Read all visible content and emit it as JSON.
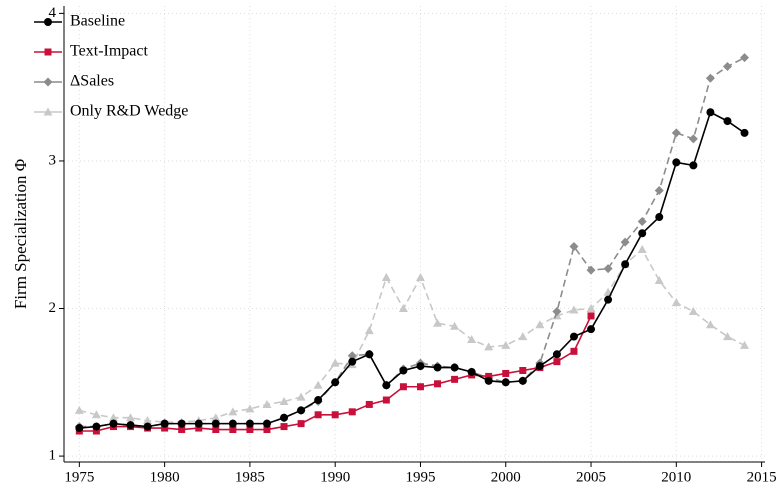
{
  "chart_data": {
    "type": "line",
    "ylabel": "Firm Specialization Φ",
    "x": [
      1975,
      1976,
      1977,
      1978,
      1979,
      1980,
      1981,
      1982,
      1983,
      1984,
      1985,
      1986,
      1987,
      1988,
      1989,
      1990,
      1991,
      1992,
      1993,
      1994,
      1995,
      1996,
      1997,
      1998,
      1999,
      2000,
      2001,
      2002,
      2003,
      2004,
      2005,
      2006,
      2007,
      2008,
      2009,
      2010,
      2011,
      2012,
      2013,
      2014
    ],
    "series": [
      {
        "name": "Baseline",
        "color": "#000000",
        "marker": "circle",
        "dashed": false,
        "values": [
          1.19,
          1.2,
          1.22,
          1.21,
          1.2,
          1.22,
          1.22,
          1.22,
          1.22,
          1.22,
          1.22,
          1.22,
          1.26,
          1.31,
          1.38,
          1.5,
          1.64,
          1.69,
          1.48,
          1.58,
          1.61,
          1.6,
          1.6,
          1.57,
          1.51,
          1.5,
          1.51,
          1.61,
          1.69,
          1.81,
          1.86,
          2.06,
          2.3,
          2.51,
          2.62,
          2.99,
          2.97,
          3.33,
          3.27,
          3.19
        ]
      },
      {
        "name": "Text-Impact",
        "color": "#c8103a",
        "marker": "square",
        "dashed": false,
        "values": [
          1.17,
          1.17,
          1.2,
          1.2,
          1.19,
          1.19,
          1.18,
          1.19,
          1.18,
          1.18,
          1.18,
          1.18,
          1.2,
          1.22,
          1.28,
          1.28,
          1.3,
          1.35,
          1.38,
          1.47,
          1.47,
          1.49,
          1.52,
          1.55,
          1.54,
          1.56,
          1.58,
          1.6,
          1.64,
          1.71,
          1.95,
          null,
          null,
          null,
          null,
          null,
          null,
          null,
          null,
          null
        ]
      },
      {
        "name": "ΔSales",
        "color": "#8c8c8c",
        "marker": "diamond",
        "dashed": true,
        "values": [
          1.2,
          1.2,
          1.22,
          1.21,
          1.2,
          1.22,
          1.22,
          1.22,
          1.22,
          1.22,
          1.22,
          1.22,
          1.26,
          1.31,
          1.37,
          1.5,
          1.68,
          1.69,
          1.48,
          1.59,
          1.63,
          1.61,
          1.6,
          1.57,
          1.53,
          1.5,
          1.51,
          1.63,
          1.98,
          2.42,
          2.26,
          2.27,
          2.45,
          2.59,
          2.8,
          3.19,
          3.15,
          3.56,
          3.64,
          3.7
        ]
      },
      {
        "name": "Only R&D Wedge",
        "color": "#c8c8c8",
        "marker": "triangle",
        "dashed": true,
        "values": [
          1.31,
          1.28,
          1.26,
          1.26,
          1.24,
          1.23,
          1.23,
          1.24,
          1.26,
          1.3,
          1.32,
          1.35,
          1.37,
          1.4,
          1.48,
          1.63,
          1.62,
          1.85,
          2.21,
          2.0,
          2.21,
          1.9,
          1.88,
          1.79,
          1.74,
          1.75,
          1.81,
          1.89,
          1.95,
          1.99,
          2.0,
          2.11,
          2.3,
          2.4,
          2.19,
          2.04,
          1.98,
          1.89,
          1.81,
          1.75
        ]
      }
    ],
    "xlim": [
      1974.1,
      2015.2
    ],
    "xticks": [
      1975,
      1980,
      1985,
      1990,
      1995,
      2000,
      2005,
      2010,
      2015
    ],
    "ylim": [
      0.96,
      4.05
    ],
    "yticks": [
      1,
      2,
      3,
      4
    ],
    "grid": true,
    "legend": "upper left"
  }
}
